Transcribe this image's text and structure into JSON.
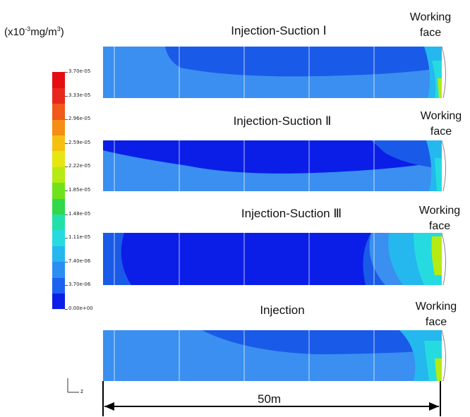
{
  "unit_label": {
    "prefix": "(x10",
    "exp1": "-3",
    "mid": "mg/m",
    "exp2": "3",
    "suffix": ")"
  },
  "colorbar": {
    "labels": [
      "3.70e-05",
      "3.33e-05",
      "2.96e-05",
      "2.59e-05",
      "2.22e-05",
      "1.85e-05",
      "1.48e-05",
      "1.11e-05",
      "7.40e-06",
      "3.70e-06",
      "0.00e+00"
    ],
    "colors": [
      "#0b1ee8",
      "#1b62f0",
      "#2b8ff2",
      "#24b8ee",
      "#25dbe0",
      "#22e0a8",
      "#30d84a",
      "#6fe21c",
      "#b5ea12",
      "#e6e612",
      "#f5c010",
      "#f58e14",
      "#f0591a",
      "#e8281c",
      "#e40d12"
    ]
  },
  "panels": [
    {
      "title": "Injection-Suction Ⅰ",
      "working_face": [
        "Working",
        "face"
      ]
    },
    {
      "title": "Injection-Suction Ⅱ",
      "working_face": [
        "Working",
        "face"
      ]
    },
    {
      "title": "Injection-Suction Ⅲ",
      "working_face": [
        "Working",
        "face"
      ]
    },
    {
      "title": "Injection",
      "working_face": [
        "Working",
        "face"
      ]
    }
  ],
  "scale": {
    "label": "50m"
  },
  "axis": {
    "z": "z"
  }
}
